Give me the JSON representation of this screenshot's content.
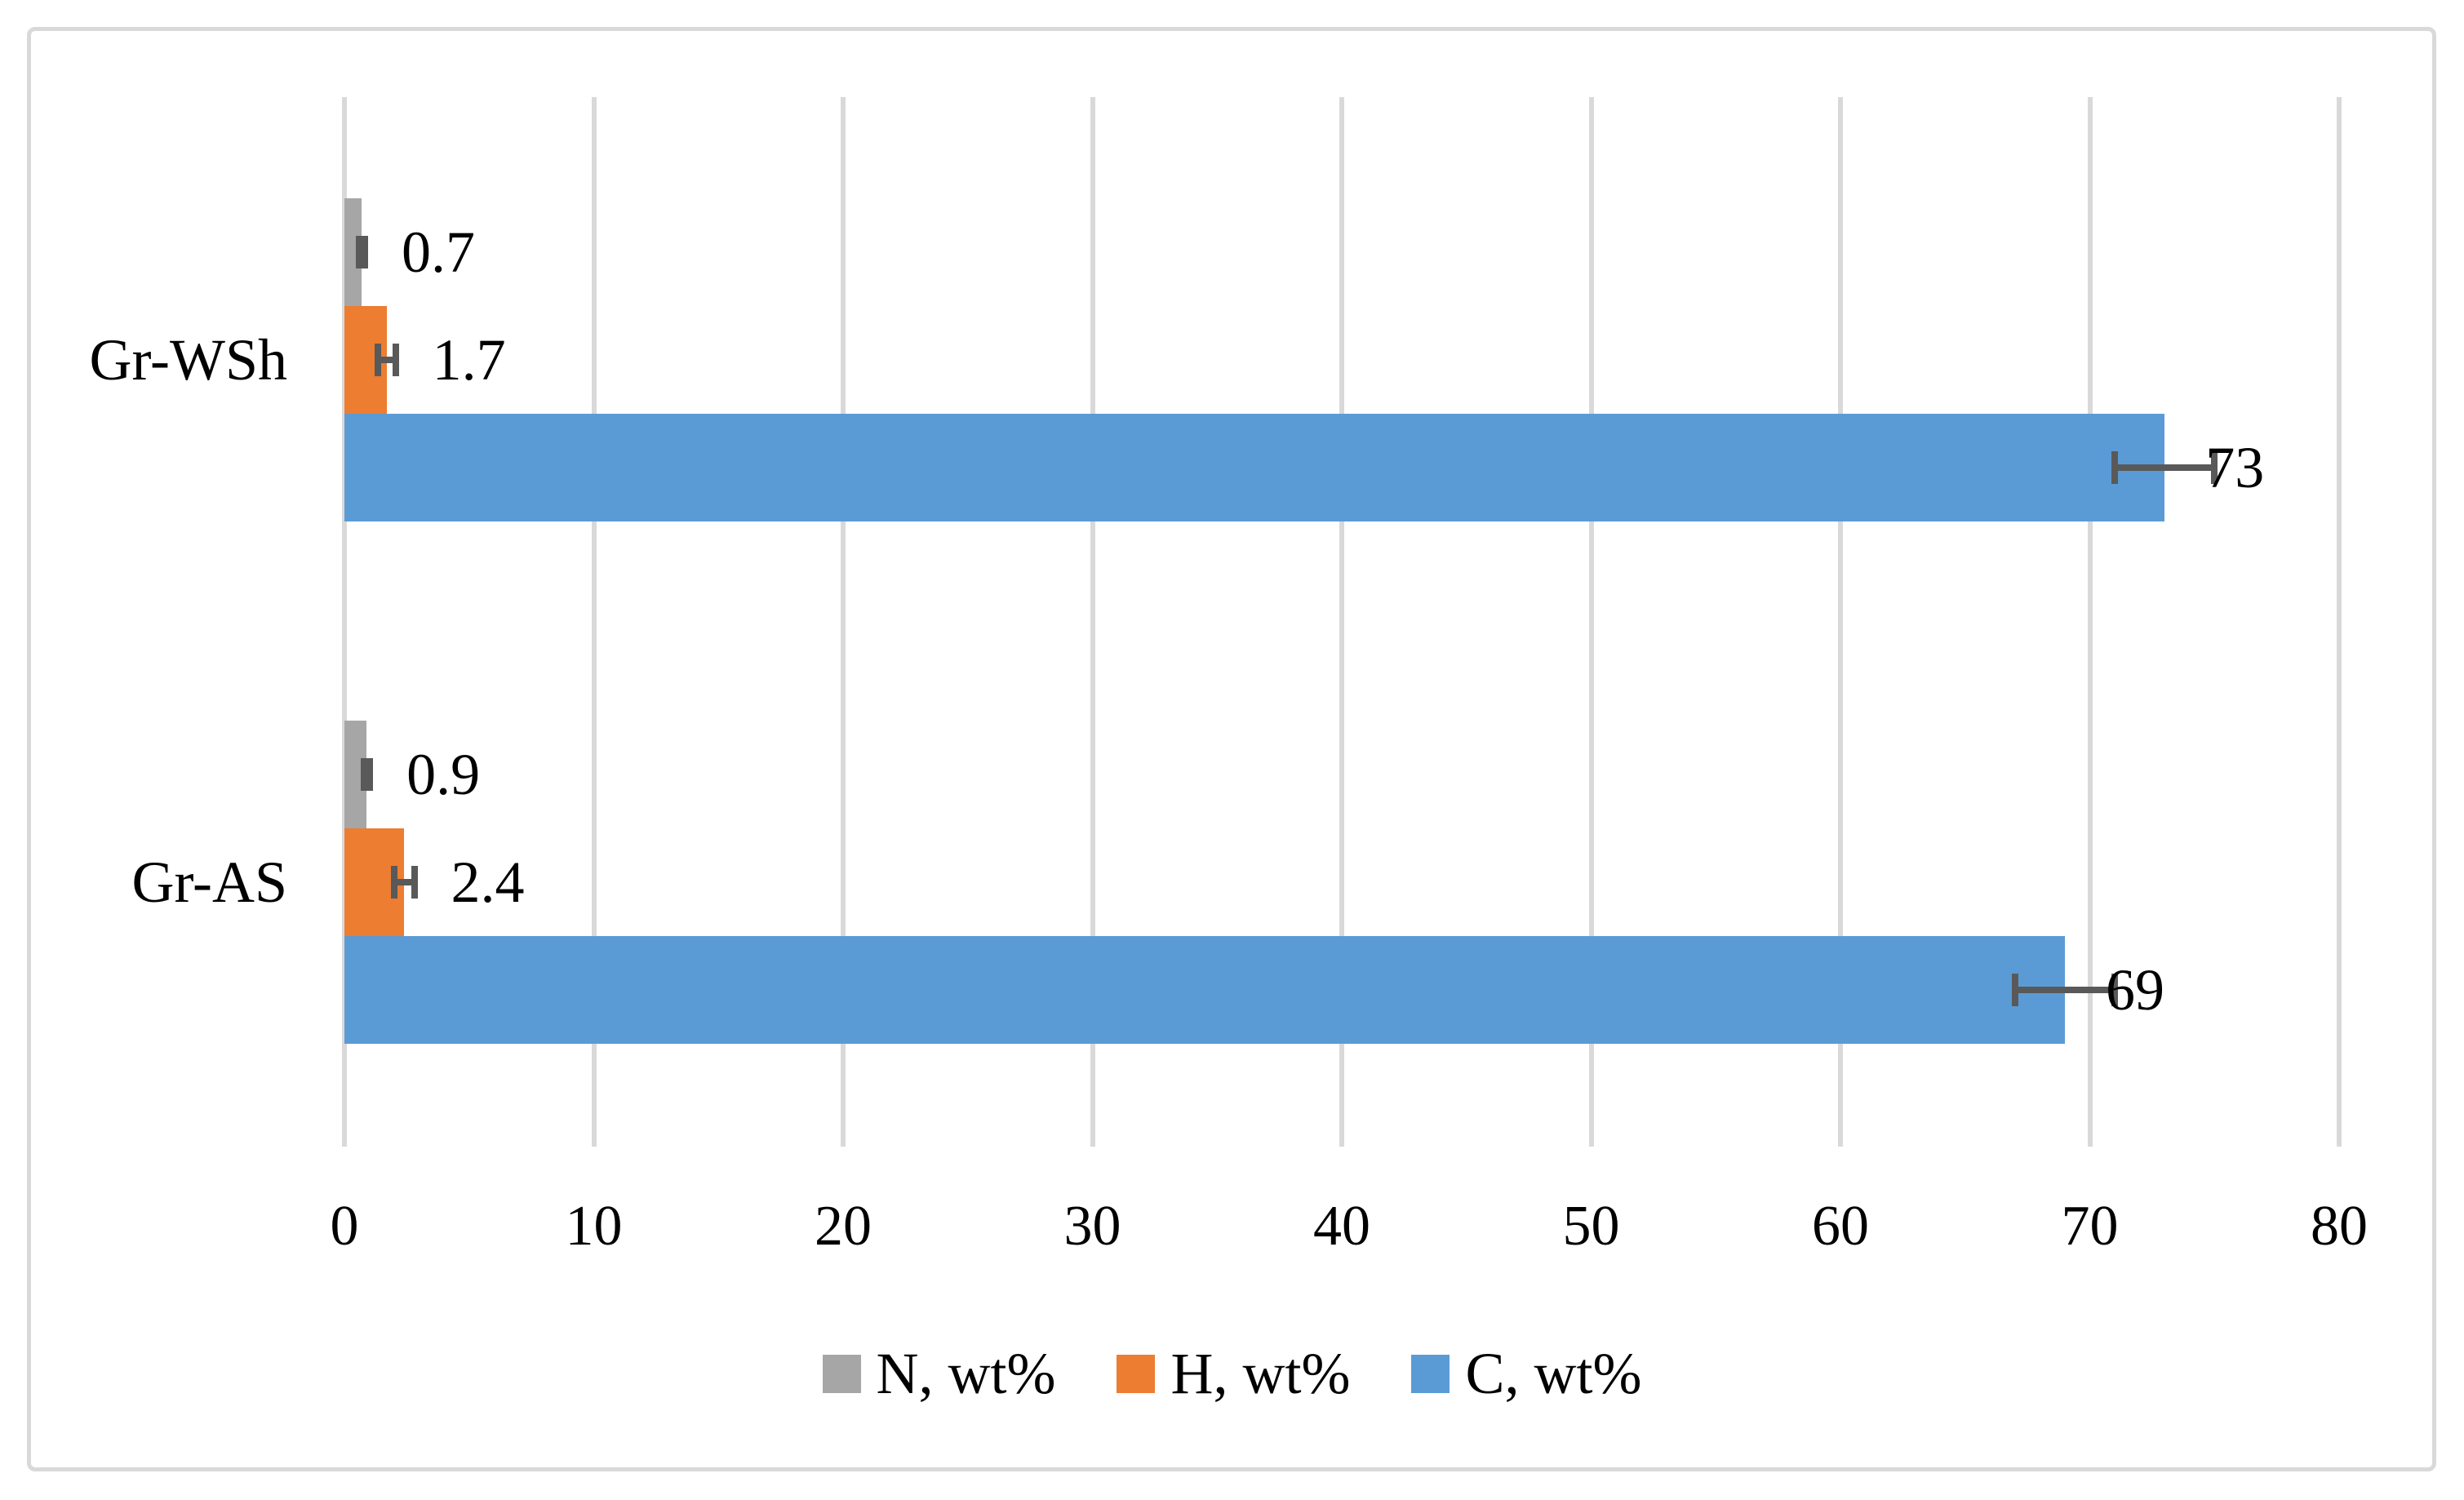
{
  "figure": {
    "background_color": "#ffffff",
    "border_color": "#d9d9d9"
  },
  "chart_data": {
    "type": "bar",
    "orientation": "horizontal",
    "title": "",
    "xlabel": "",
    "ylabel": "",
    "categories": [
      "Gr-WSh",
      "Gr-AS"
    ],
    "series": [
      {
        "name": "N, wt%",
        "color": "#a6a6a6",
        "values": [
          0.7,
          0.9
        ],
        "labels": [
          "0.7",
          "0.9"
        ],
        "errors": [
          0.12,
          0.12
        ]
      },
      {
        "name": "H, wt%",
        "color": "#ed7d31",
        "values": [
          1.7,
          2.4
        ],
        "labels": [
          "1.7",
          "2.4"
        ],
        "errors": [
          0.35,
          0.4
        ]
      },
      {
        "name": "C, wt%",
        "color": "#5b9bd5",
        "values": [
          73,
          69
        ],
        "labels": [
          "73",
          "69"
        ],
        "errors": [
          2.0,
          2.0
        ]
      }
    ],
    "x_axis": {
      "min": 0,
      "max": 80,
      "tick_interval": 10,
      "tick_labels": [
        "0",
        "10",
        "20",
        "30",
        "40",
        "50",
        "60",
        "70",
        "80"
      ]
    },
    "gridlines": {
      "show": true,
      "color": "#d9d9d9"
    },
    "error_bar_color": "#595959",
    "legend": {
      "position": "bottom",
      "entries": [
        "N, wt%",
        "H, wt%",
        "C, wt%"
      ]
    }
  }
}
